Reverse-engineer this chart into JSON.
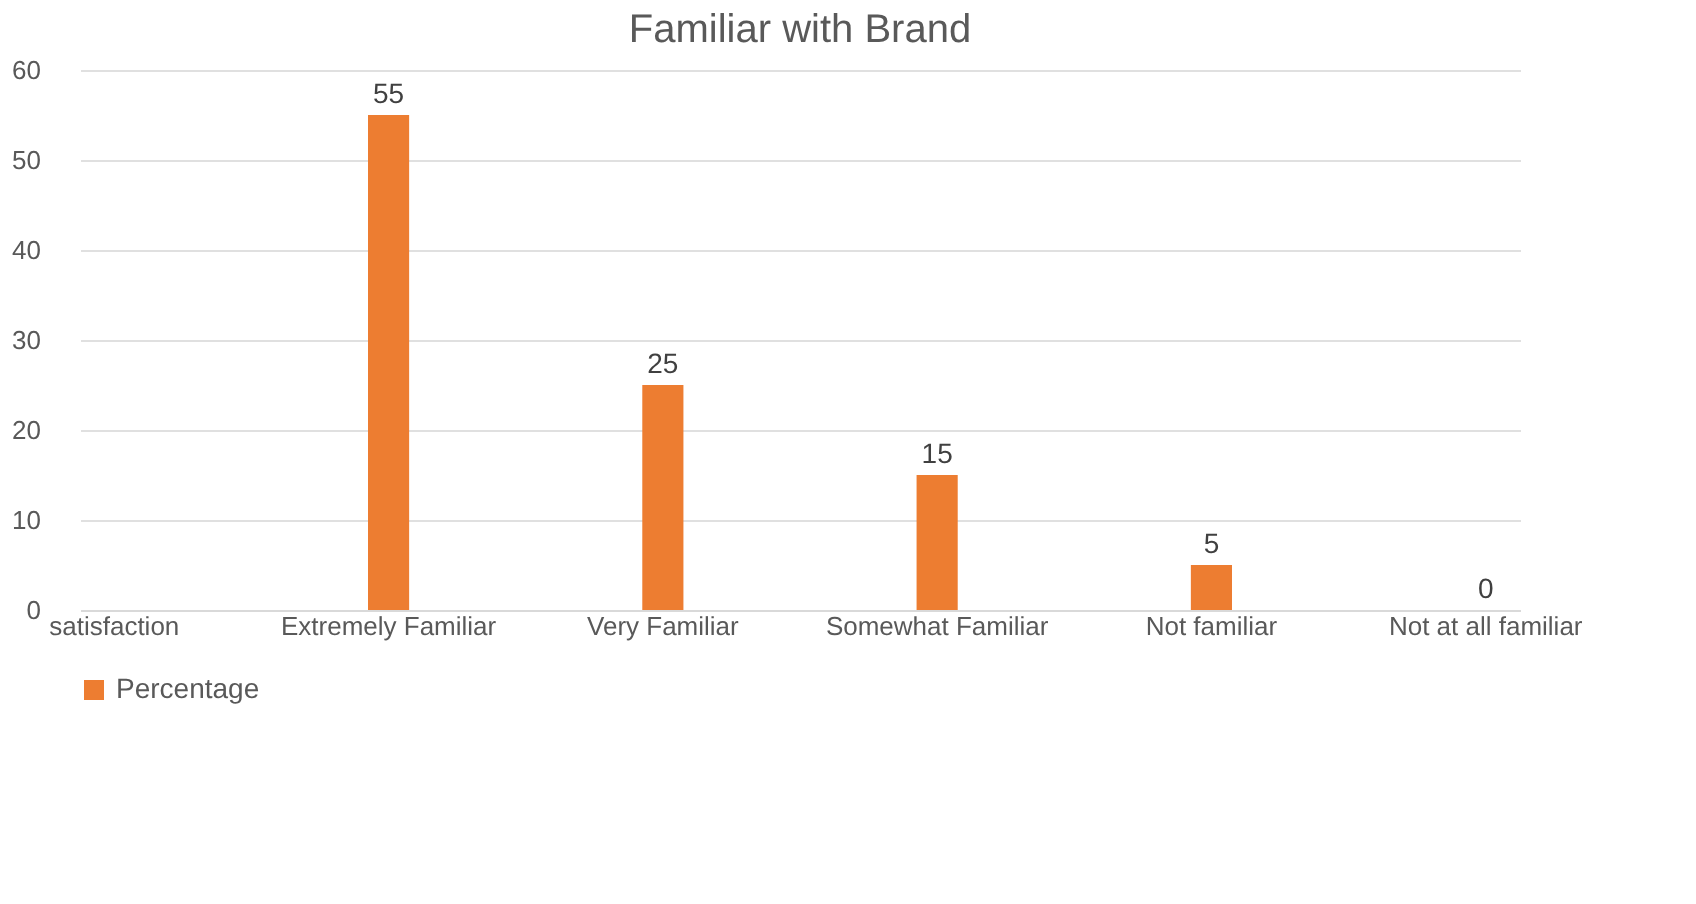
{
  "chart_data": {
    "type": "bar",
    "title": "Familiar with Brand",
    "categories": [
      "satisfaction",
      "Extremely Familiar",
      "Very Familiar",
      "Somewhat Familiar",
      "Not familiar",
      "Not at all familiar"
    ],
    "series": [
      {
        "name": "Percentage",
        "color": "#ed7d31",
        "values": [
          null,
          55,
          25,
          15,
          5,
          0
        ]
      }
    ],
    "ylim": [
      0,
      60
    ],
    "yticks": [
      0,
      10,
      20,
      30,
      40,
      50,
      60
    ],
    "grid": "y",
    "legend": "bottom",
    "data_labels": true
  }
}
